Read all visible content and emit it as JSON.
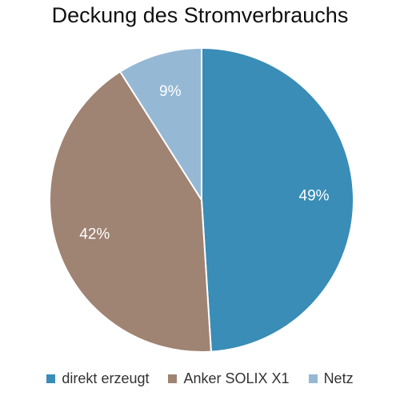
{
  "chart_data": {
    "type": "pie",
    "title": "Deckung des Stromverbrauchs",
    "slices": [
      {
        "label": "direkt erzeugt",
        "value": 49,
        "display": "49%",
        "color": "#398DB6"
      },
      {
        "label": "Anker SOLIX X1",
        "value": 42,
        "display": "42%",
        "color": "#9F8373"
      },
      {
        "label": "Netz",
        "value": 9,
        "display": "9%",
        "color": "#95B8D5"
      }
    ],
    "start_angle": "12 o'clock",
    "direction": "clockwise",
    "legend_position": "bottom"
  },
  "legend": {
    "items": [
      {
        "label": "direkt erzeugt",
        "color": "#398DB6"
      },
      {
        "label": "Anker SOLIX X1",
        "color": "#9F8373"
      },
      {
        "label": "Netz",
        "color": "#95B8D5"
      }
    ]
  }
}
